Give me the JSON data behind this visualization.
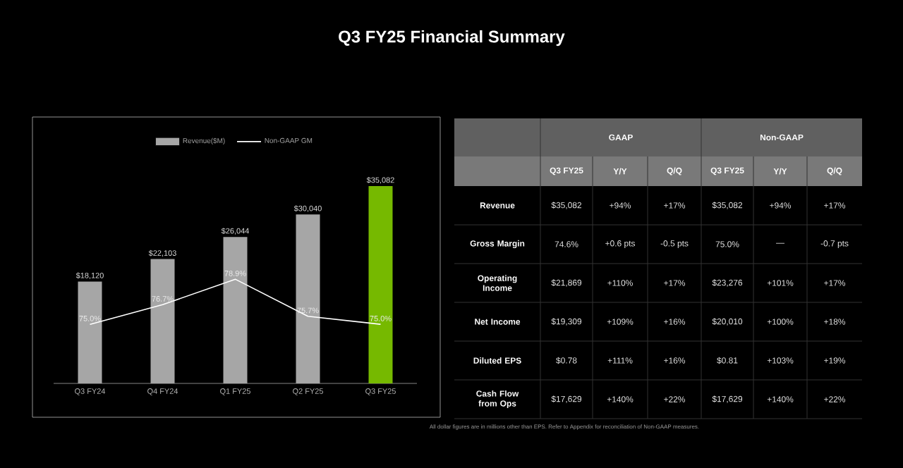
{
  "chart_data": [
    {
      "type": "bar",
      "title": "Q3 FY25 Financial Summary",
      "categories": [
        "Q3 FY24",
        "Q4 FY24",
        "Q1 FY25",
        "Q2 FY25",
        "Q3 FY25"
      ],
      "series": [
        {
          "name": "Revenue($M)",
          "type": "bar",
          "colors": [
            "#a6a6a6",
            "#a6a6a6",
            "#a6a6a6",
            "#a6a6a6",
            "#76b900"
          ],
          "values": [
            18120,
            22103,
            26044,
            30040,
            35082
          ],
          "value_labels": [
            "$18,120",
            "$22,103",
            "$26,044",
            "$30,040",
            "$35,082"
          ]
        },
        {
          "name": "Non-GAAP GM",
          "type": "line",
          "axis": "y2",
          "color": "#ffffff",
          "values": [
            75.0,
            76.7,
            78.9,
            75.7,
            75.0
          ],
          "value_labels": [
            "75.0%",
            "76.7%",
            "78.9%",
            "75.7%",
            "75.0%"
          ]
        }
      ],
      "tick_labels": "x",
      "legend": "top",
      "grid": false
    },
    {
      "type": "other",
      "annotations": [
        "GAAP",
        "Non-GAAP",
        "Q3 FY25",
        "Y/Y",
        "Q/Q",
        "Q3 FY25",
        "Y/Y",
        "Q/Q",
        "Revenue",
        "$35,082",
        "+94%",
        "+17%",
        "$35,082",
        "+94%",
        "+17%",
        "Gross Margin",
        "74.6%",
        "+0.6 pts",
        "-0.5 pts",
        "75.0%",
        "—",
        "-0.7 pts",
        "Operating Income",
        "$21,869",
        "+110%",
        "+17%",
        "$23,276",
        "+101%",
        "+17%",
        "Net Income",
        "$19,309",
        "+109%",
        "+16%",
        "$20,010",
        "+100%",
        "+18%",
        "Diluted EPS",
        "$0.78",
        "+111%",
        "+16%",
        "$0.81",
        "+103%",
        "+19%",
        "Cash Flow from Ops",
        "$17,629",
        "+140%",
        "+22%",
        "$17,629",
        "+140%",
        "+22%",
        "All dollar figures are in millions other than EPS. Refer to Appendix for reconciliation of Non-GAAP measures."
      ]
    }
  ]
}
